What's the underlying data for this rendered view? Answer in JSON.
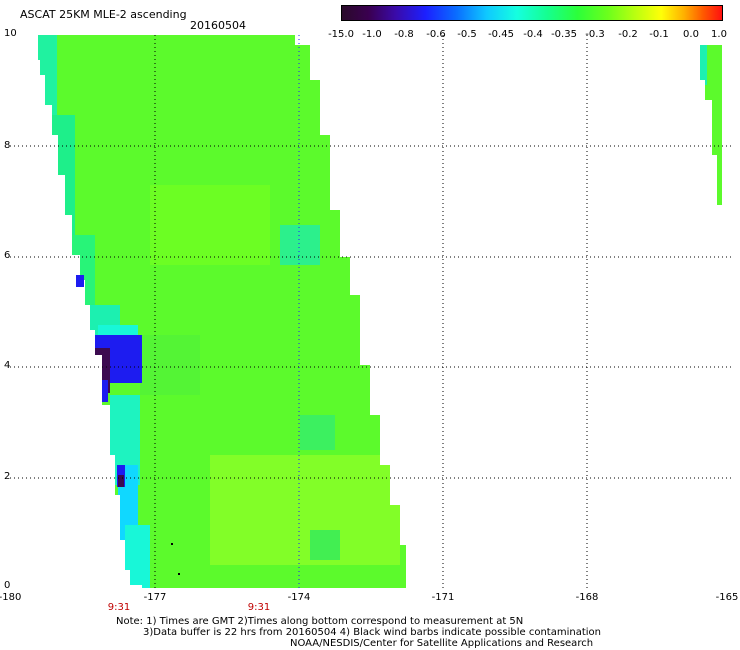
{
  "header": {
    "title": "ASCAT 25KM MLE-2 ascending",
    "date": "20160504"
  },
  "colorbar": {
    "labels": [
      "-15.0",
      "-1.0",
      "-0.8",
      "-0.6",
      "-0.5",
      "-0.45",
      "-0.4",
      "-0.35",
      "-0.3",
      "-0.2",
      "-0.1",
      "0.0",
      "1.0"
    ]
  },
  "axes": {
    "y_ticks": [
      "10",
      "8",
      "6",
      "4",
      "2",
      "0"
    ],
    "x_ticks": [
      "-180",
      "-177",
      "-174",
      "-171",
      "-168",
      "-165"
    ]
  },
  "time_labels": [
    "9:31",
    "9:31"
  ],
  "notes": {
    "line1": "Note: 1) Times are GMT 2)Times along bottom correspond to measurement at 5N",
    "line2": "3)Data buffer is 22 hrs from 20160504 4) Black wind barbs indicate possible contamination",
    "line3": "NOAA/NESDIS/Center for Satellite Applications and Research"
  },
  "colors": {
    "swath_main": "#5cfa2c",
    "swath_light": "#8cff28",
    "cyan": "#18f7d8",
    "blue": "#1d1cf0",
    "purple": "#3c0a50"
  }
}
